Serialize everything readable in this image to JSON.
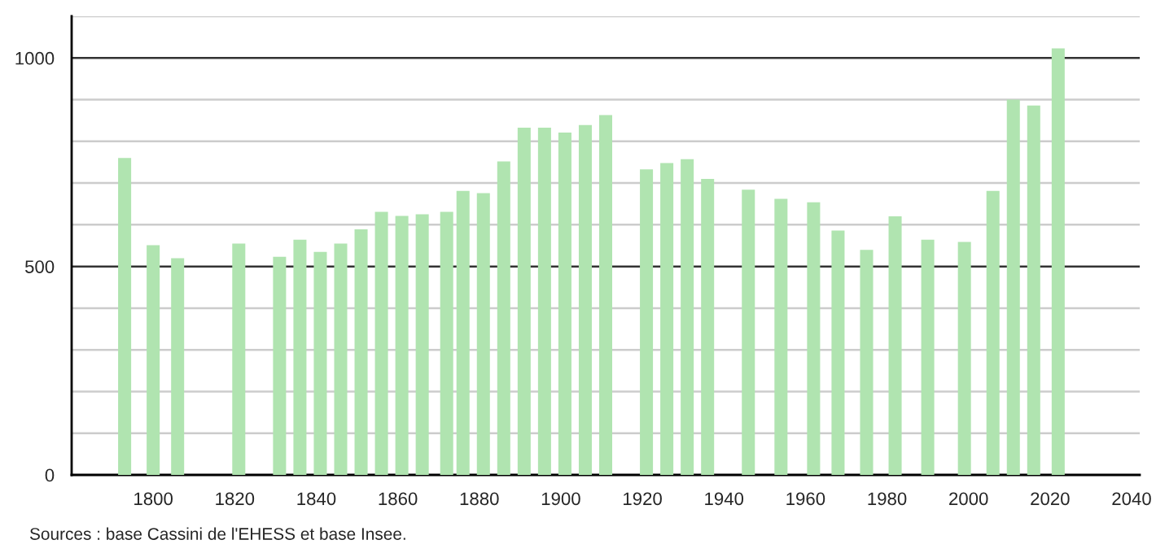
{
  "chart_data": {
    "type": "bar",
    "x": [
      1793,
      1800,
      1806,
      1821,
      1831,
      1836,
      1841,
      1846,
      1851,
      1856,
      1861,
      1866,
      1872,
      1876,
      1881,
      1886,
      1891,
      1896,
      1901,
      1906,
      1911,
      1921,
      1926,
      1931,
      1936,
      1946,
      1954,
      1962,
      1968,
      1975,
      1982,
      1990,
      1999,
      2006,
      2011,
      2016,
      2022
    ],
    "values": [
      760,
      551,
      520,
      555,
      523,
      564,
      535,
      555,
      589,
      631,
      621,
      625,
      631,
      681,
      676,
      752,
      833,
      833,
      821,
      839,
      863,
      733,
      748,
      757,
      710,
      684,
      662,
      654,
      586,
      540,
      620,
      564,
      559,
      681,
      900,
      886,
      1023
    ],
    "color": "#b0e4b0",
    "xlim": [
      1780,
      2042
    ],
    "xticks": [
      1800,
      1820,
      1840,
      1860,
      1880,
      1900,
      1920,
      1940,
      1960,
      1980,
      2000,
      2020,
      2040
    ],
    "ylim": [
      0,
      1100
    ],
    "yticks": [
      0,
      {
        "value": 100,
        "label": null
      },
      {
        "value": 200,
        "label": null
      },
      {
        "value": 300,
        "label": null
      },
      {
        "value": 400,
        "label": null
      },
      500,
      {
        "value": 600,
        "label": null
      },
      {
        "value": 700,
        "label": null
      },
      {
        "value": 800,
        "label": null
      },
      {
        "value": 900,
        "label": null
      },
      1000,
      {
        "value": 1100,
        "label": null
      }
    ],
    "grid": "y",
    "annotations": [
      "Sources : base Cassini de l'EHESS et base Insee."
    ]
  }
}
